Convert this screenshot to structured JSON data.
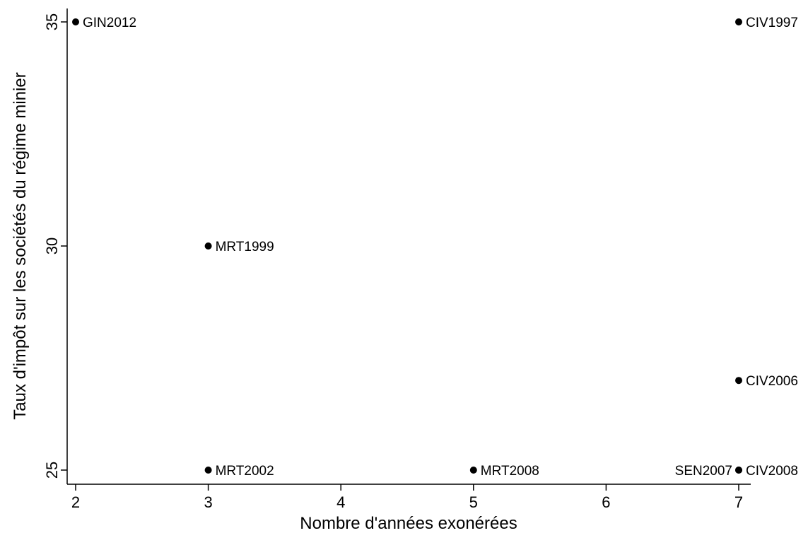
{
  "chart_data": {
    "type": "scatter",
    "title": "",
    "xlabel": "Nombre d'années exonérées",
    "ylabel": "Taux d'impôt sur les sociétés du régime minier",
    "xlim": [
      2,
      7
    ],
    "ylim": [
      25,
      35
    ],
    "xticks": [
      "2",
      "3",
      "4",
      "5",
      "6",
      "7"
    ],
    "yticks": [
      "25",
      "30",
      "35"
    ],
    "grid": false,
    "marker_color": "#000000",
    "points": [
      {
        "label": "GIN2012",
        "x": 2,
        "y": 35,
        "label_side": "right"
      },
      {
        "label": "CIV1997",
        "x": 7,
        "y": 35,
        "label_side": "right"
      },
      {
        "label": "MRT1999",
        "x": 3,
        "y": 30,
        "label_side": "right"
      },
      {
        "label": "CIV2006",
        "x": 7,
        "y": 27,
        "label_side": "right"
      },
      {
        "label": "MRT2002",
        "x": 3,
        "y": 25,
        "label_side": "right"
      },
      {
        "label": "MRT2008",
        "x": 5,
        "y": 25,
        "label_side": "right"
      },
      {
        "label": "SEN2007",
        "x": 7,
        "y": 25,
        "label_side": "left"
      },
      {
        "label": "CIV2008",
        "x": 7,
        "y": 25,
        "label_side": "right"
      }
    ]
  }
}
